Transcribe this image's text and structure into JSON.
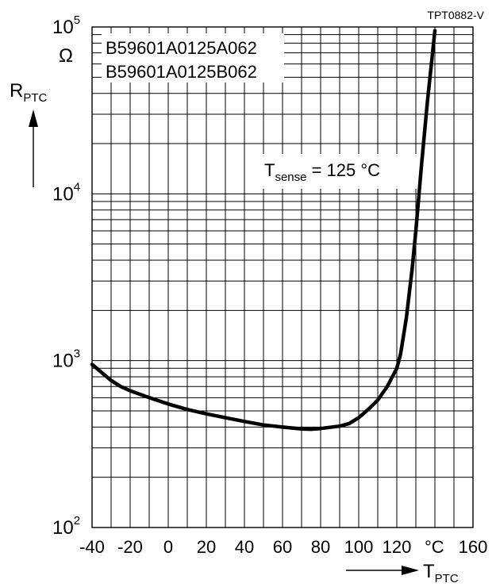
{
  "chart_data": {
    "type": "line",
    "code": "TPT0882-V",
    "ylabel": {
      "main": "R",
      "sub": "PTC"
    },
    "yunit": "Ω",
    "xlabel": {
      "main": "T",
      "sub": "PTC"
    },
    "xunit": "°C",
    "parts": [
      "B59601A0125A062",
      "B59601A0125B062"
    ],
    "annotation": {
      "main": "T",
      "sub": "sense",
      "rest": " = 125 °C"
    },
    "x_ticks": [
      -40,
      -20,
      0,
      20,
      40,
      60,
      80,
      100,
      120,
      160
    ],
    "x_tick_labels": [
      "-40",
      "-20",
      "0",
      "20",
      "40",
      "60",
      "80",
      "100",
      "120",
      "160"
    ],
    "y_decades": [
      {
        "value": 100,
        "base": "10",
        "exp": "2"
      },
      {
        "value": 1000,
        "base": "10",
        "exp": "3"
      },
      {
        "value": 10000,
        "base": "10",
        "exp": "4"
      },
      {
        "value": 100000,
        "base": "10",
        "exp": "5"
      }
    ],
    "xlim": [
      -40,
      160
    ],
    "ylim": [
      100,
      100000
    ],
    "yscale": "log",
    "grid": true,
    "series": [
      {
        "x": [
          -40,
          -35,
          -30,
          -25,
          -20,
          -10,
          0,
          10,
          20,
          30,
          40,
          50,
          60,
          70,
          75,
          80,
          90,
          95,
          100,
          105,
          110,
          115,
          120,
          122,
          125,
          128,
          130,
          133,
          136,
          140
        ],
        "y": [
          950,
          850,
          760,
          700,
          660,
          600,
          550,
          510,
          480,
          455,
          432,
          412,
          400,
          390,
          388,
          392,
          405,
          420,
          455,
          510,
          580,
          700,
          900,
          1100,
          1800,
          3500,
          6000,
          15000,
          35000,
          95000
        ]
      }
    ]
  }
}
